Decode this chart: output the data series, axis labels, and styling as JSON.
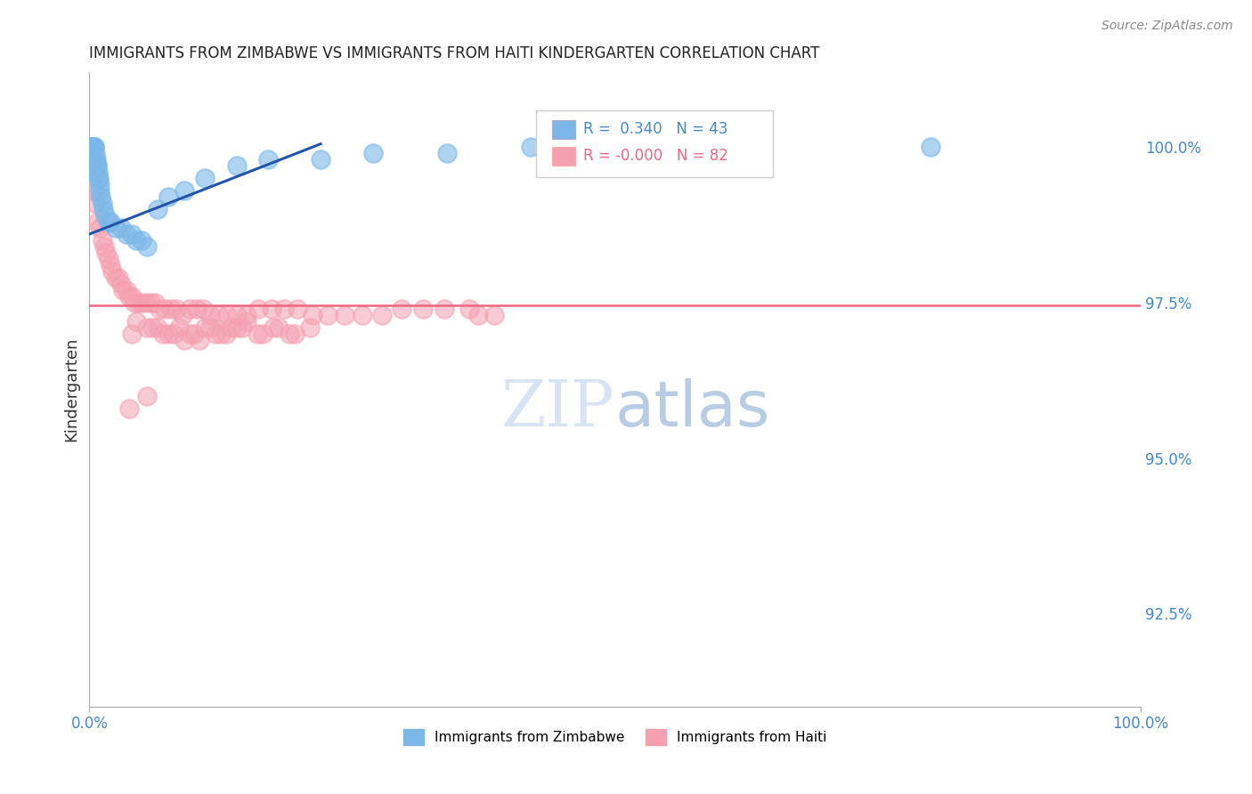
{
  "title": "IMMIGRANTS FROM ZIMBABWE VS IMMIGRANTS FROM HAITI KINDERGARTEN CORRELATION CHART",
  "source_text": "Source: ZipAtlas.com",
  "ylabel": "Kindergarten",
  "r_blue": 0.34,
  "n_blue": 43,
  "r_pink": -0.0,
  "n_pink": 82,
  "xlim": [
    0.0,
    100.0
  ],
  "ylim": [
    91.0,
    101.2
  ],
  "yticks_right": [
    92.5,
    95.0,
    97.5,
    100.0
  ],
  "ytick_labels_right": [
    "92.5%",
    "95.0%",
    "97.5%",
    "100.0%"
  ],
  "blue_color": "#7BB8E8",
  "pink_color": "#F4A0B0",
  "blue_line_color": "#2255AA",
  "pink_line_color": "#EE6680",
  "grid_color": "#CCCCCC",
  "background_color": "#FFFFFF",
  "blue_scatter_x": [
    0.15,
    0.2,
    0.25,
    0.3,
    0.35,
    0.4,
    0.45,
    0.5,
    0.55,
    0.6,
    0.65,
    0.7,
    0.75,
    0.8,
    0.85,
    0.9,
    0.95,
    1.0,
    1.1,
    1.2,
    1.3,
    1.5,
    1.8,
    2.0,
    2.5,
    3.0,
    3.5,
    4.0,
    4.5,
    5.0,
    5.5,
    6.5,
    7.5,
    9.0,
    11.0,
    14.0,
    17.0,
    22.0,
    27.0,
    34.0,
    42.0,
    55.0,
    80.0
  ],
  "blue_scatter_y": [
    100.0,
    100.0,
    100.0,
    100.0,
    100.0,
    100.0,
    100.0,
    100.0,
    99.9,
    99.8,
    99.8,
    99.7,
    99.7,
    99.6,
    99.5,
    99.5,
    99.4,
    99.3,
    99.2,
    99.1,
    99.0,
    98.9,
    98.8,
    98.8,
    98.7,
    98.7,
    98.6,
    98.6,
    98.5,
    98.5,
    98.4,
    99.0,
    99.2,
    99.3,
    99.5,
    99.7,
    99.8,
    99.8,
    99.9,
    99.9,
    100.0,
    100.0,
    100.0
  ],
  "pink_scatter_x": [
    0.3,
    0.5,
    0.8,
    1.0,
    1.2,
    1.4,
    1.6,
    1.8,
    2.0,
    2.2,
    2.5,
    2.8,
    3.0,
    3.2,
    3.5,
    3.8,
    4.0,
    4.3,
    4.6,
    5.0,
    5.4,
    5.8,
    6.2,
    6.7,
    7.2,
    7.8,
    8.3,
    8.9,
    9.5,
    10.2,
    10.8,
    11.5,
    12.3,
    13.1,
    14.0,
    15.0,
    16.1,
    17.3,
    18.5,
    19.8,
    21.2,
    22.7,
    24.3,
    26.0,
    27.8,
    29.7,
    31.7,
    33.8,
    36.1,
    38.5,
    4.5,
    6.0,
    7.5,
    9.0,
    10.5,
    12.0,
    13.5,
    15.0,
    16.5,
    18.0,
    19.5,
    21.0,
    4.0,
    5.5,
    7.0,
    8.5,
    10.0,
    11.5,
    13.0,
    14.5,
    16.0,
    17.5,
    19.0,
    6.5,
    8.0,
    9.5,
    11.0,
    12.5,
    14.0,
    37.0,
    3.8,
    5.5
  ],
  "pink_scatter_y": [
    99.3,
    99.1,
    98.8,
    98.7,
    98.5,
    98.4,
    98.3,
    98.2,
    98.1,
    98.0,
    97.9,
    97.9,
    97.8,
    97.7,
    97.7,
    97.6,
    97.6,
    97.5,
    97.5,
    97.5,
    97.5,
    97.5,
    97.5,
    97.4,
    97.4,
    97.4,
    97.4,
    97.3,
    97.4,
    97.4,
    97.4,
    97.3,
    97.3,
    97.3,
    97.3,
    97.3,
    97.4,
    97.4,
    97.4,
    97.4,
    97.3,
    97.3,
    97.3,
    97.3,
    97.3,
    97.4,
    97.4,
    97.4,
    97.4,
    97.3,
    97.2,
    97.1,
    97.0,
    96.9,
    96.9,
    97.0,
    97.1,
    97.2,
    97.0,
    97.1,
    97.0,
    97.1,
    97.0,
    97.1,
    97.0,
    97.1,
    97.0,
    97.1,
    97.0,
    97.1,
    97.0,
    97.1,
    97.0,
    97.1,
    97.0,
    97.0,
    97.1,
    97.0,
    97.1,
    97.3,
    95.8,
    96.0
  ],
  "blue_trend_x0": 0.0,
  "blue_trend_y0": 98.6,
  "blue_trend_x1": 22.0,
  "blue_trend_y1": 100.05,
  "pink_trend_y": 97.45
}
